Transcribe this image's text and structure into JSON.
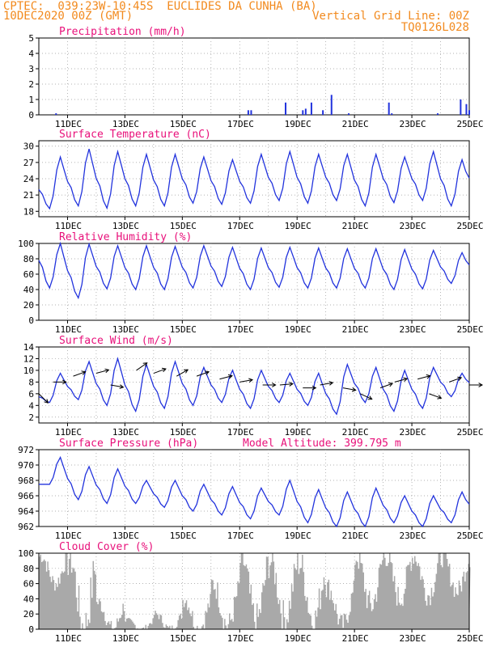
{
  "header": {
    "station": "CPTEC:  039:23W-10:45S  EUCLIDES DA CUNHA (BA)",
    "date": "10DEC2020 00Z (GMT)",
    "grid": "Vertical Grid Line: 00Z",
    "code": "TQ0126L028"
  },
  "colors": {
    "line": "#2233dd",
    "title": "#e8107a",
    "header": "#f28a1e",
    "cloud": "#a9a9a9",
    "grid": "#999999"
  },
  "x_axis": {
    "labels": [
      "11DEC",
      "13DEC",
      "15DEC",
      "17DEC",
      "19DEC",
      "21DEC",
      "23DEC",
      "25DEC"
    ],
    "start_day": 10,
    "end_day": 25
  },
  "chart_data": [
    {
      "id": "precip",
      "type": "bar",
      "title": "Precipitation (mm/h)",
      "ylim": [
        0,
        5
      ],
      "yticks": [
        "0",
        "1",
        "2",
        "3",
        "4",
        "5"
      ],
      "points": [
        [
          10.6,
          0.1
        ],
        [
          17.3,
          0.3
        ],
        [
          17.4,
          0.3
        ],
        [
          18.6,
          0.8
        ],
        [
          19.2,
          0.3
        ],
        [
          19.3,
          0.4
        ],
        [
          19.5,
          0.8
        ],
        [
          19.9,
          0.3
        ],
        [
          20.2,
          1.3
        ],
        [
          20.8,
          0.1
        ],
        [
          22.2,
          0.8
        ],
        [
          22.3,
          0.1
        ],
        [
          23.9,
          0.1
        ],
        [
          24.7,
          1.0
        ],
        [
          24.9,
          0.7
        ],
        [
          25.0,
          0.3
        ]
      ]
    },
    {
      "id": "temp",
      "type": "line",
      "title": "Surface Temperature (nC)",
      "ylim": [
        17,
        31
      ],
      "yticks": [
        "18",
        "21",
        "24",
        "27",
        "30"
      ],
      "ytick_values": [
        18,
        21,
        24,
        27,
        30
      ],
      "daily_min": [
        18.5,
        19.0,
        18.6,
        19.0,
        19.0,
        19.5,
        19.3,
        19.5,
        20.0,
        19.5,
        20.0,
        19.0,
        19.6,
        20.0,
        19.0
      ],
      "daily_max": [
        28.0,
        29.5,
        29.0,
        28.5,
        28.5,
        28.0,
        27.5,
        28.5,
        29.0,
        28.5,
        28.5,
        28.5,
        28.0,
        29.0,
        27.5
      ],
      "start": 22.0
    },
    {
      "id": "rh",
      "type": "line",
      "title": "Relative Humidity (%)",
      "ylim": [
        0,
        100
      ],
      "yticks": [
        "0",
        "20",
        "40",
        "60",
        "80",
        "100"
      ],
      "ytick_values": [
        0,
        20,
        40,
        60,
        80,
        100
      ],
      "daily_max": [
        100,
        99,
        97,
        97,
        96,
        97,
        95,
        94,
        95,
        94,
        93,
        93,
        92,
        91,
        88
      ],
      "daily_min": [
        42,
        29,
        41,
        40,
        40,
        42,
        44,
        40,
        43,
        42,
        42,
        42,
        40,
        41,
        48
      ],
      "start": 78
    },
    {
      "id": "wind",
      "type": "line",
      "title": "Surface Wind (m/s)",
      "ylim": [
        1,
        14
      ],
      "yticks": [
        "2",
        "4",
        "6",
        "8",
        "10",
        "12",
        "14"
      ],
      "ytick_values": [
        2,
        4,
        6,
        8,
        10,
        12,
        14
      ],
      "daily_max": [
        9.5,
        11.5,
        12.0,
        11.0,
        11.5,
        10.5,
        10.0,
        10.0,
        9.5,
        9.5,
        11.0,
        10.5,
        10.0,
        10.5,
        9.5
      ],
      "daily_min": [
        4.5,
        5.0,
        4.0,
        3.0,
        3.5,
        4.0,
        4.5,
        3.5,
        4.5,
        4.0,
        2.5,
        4.5,
        3.0,
        3.5,
        5.5
      ],
      "start": 5.5,
      "arrows": [
        [
          10.0,
          6.0,
          45
        ],
        [
          10.5,
          8.0,
          0
        ],
        [
          11.2,
          9.0,
          -20
        ],
        [
          12.0,
          9.5,
          -15
        ],
        [
          12.5,
          7.5,
          10
        ],
        [
          13.4,
          10.0,
          -35
        ],
        [
          14.0,
          9.5,
          -20
        ],
        [
          14.8,
          9.0,
          -30
        ],
        [
          15.5,
          9.0,
          -20
        ],
        [
          16.3,
          8.5,
          -15
        ],
        [
          17.0,
          8.0,
          -10
        ],
        [
          17.8,
          7.5,
          0
        ],
        [
          18.4,
          7.5,
          -5
        ],
        [
          19.2,
          7.0,
          0
        ],
        [
          19.8,
          7.5,
          -10
        ],
        [
          20.6,
          7.0,
          10
        ],
        [
          21.2,
          6.0,
          25
        ],
        [
          21.9,
          7.0,
          -20
        ],
        [
          22.4,
          8.0,
          -15
        ],
        [
          23.2,
          8.5,
          -15
        ],
        [
          23.6,
          6.0,
          20
        ],
        [
          24.3,
          8.0,
          -20
        ],
        [
          25.0,
          7.5,
          0
        ]
      ]
    },
    {
      "id": "pres",
      "type": "line",
      "title": "Surface Pressure (hPa)",
      "subtitle": "Model Altitude: 399.795 m",
      "ylim": [
        962,
        972
      ],
      "yticks": [
        "962",
        "964",
        "966",
        "968",
        "970",
        "972"
      ],
      "ytick_values": [
        962,
        964,
        966,
        968,
        970,
        972
      ],
      "daily_max": [
        971.0,
        969.8,
        969.5,
        968.0,
        968.0,
        967.5,
        967.2,
        967.0,
        968.0,
        966.8,
        966.5,
        967.0,
        966.0,
        966.0,
        966.5
      ],
      "daily_min": [
        967.5,
        965.5,
        965.0,
        965.0,
        964.5,
        964.0,
        963.5,
        963.0,
        963.5,
        962.5,
        962.0,
        962.0,
        962.5,
        962.0,
        962.5
      ],
      "start": 967.5
    },
    {
      "id": "cloud",
      "type": "area",
      "title": "Cloud Cover (%)",
      "ylim": [
        0,
        100
      ],
      "yticks": [
        "0",
        "20",
        "40",
        "60",
        "80",
        "100"
      ],
      "ytick_values": [
        0,
        20,
        40,
        60,
        80,
        100
      ],
      "daily_max": [
        97,
        96,
        35,
        12,
        20,
        40,
        60,
        92,
        90,
        88,
        55,
        96,
        98,
        97,
        95
      ],
      "daily_min": [
        60,
        2,
        0,
        0,
        0,
        0,
        5,
        10,
        15,
        10,
        5,
        30,
        40,
        45,
        50
      ]
    }
  ]
}
